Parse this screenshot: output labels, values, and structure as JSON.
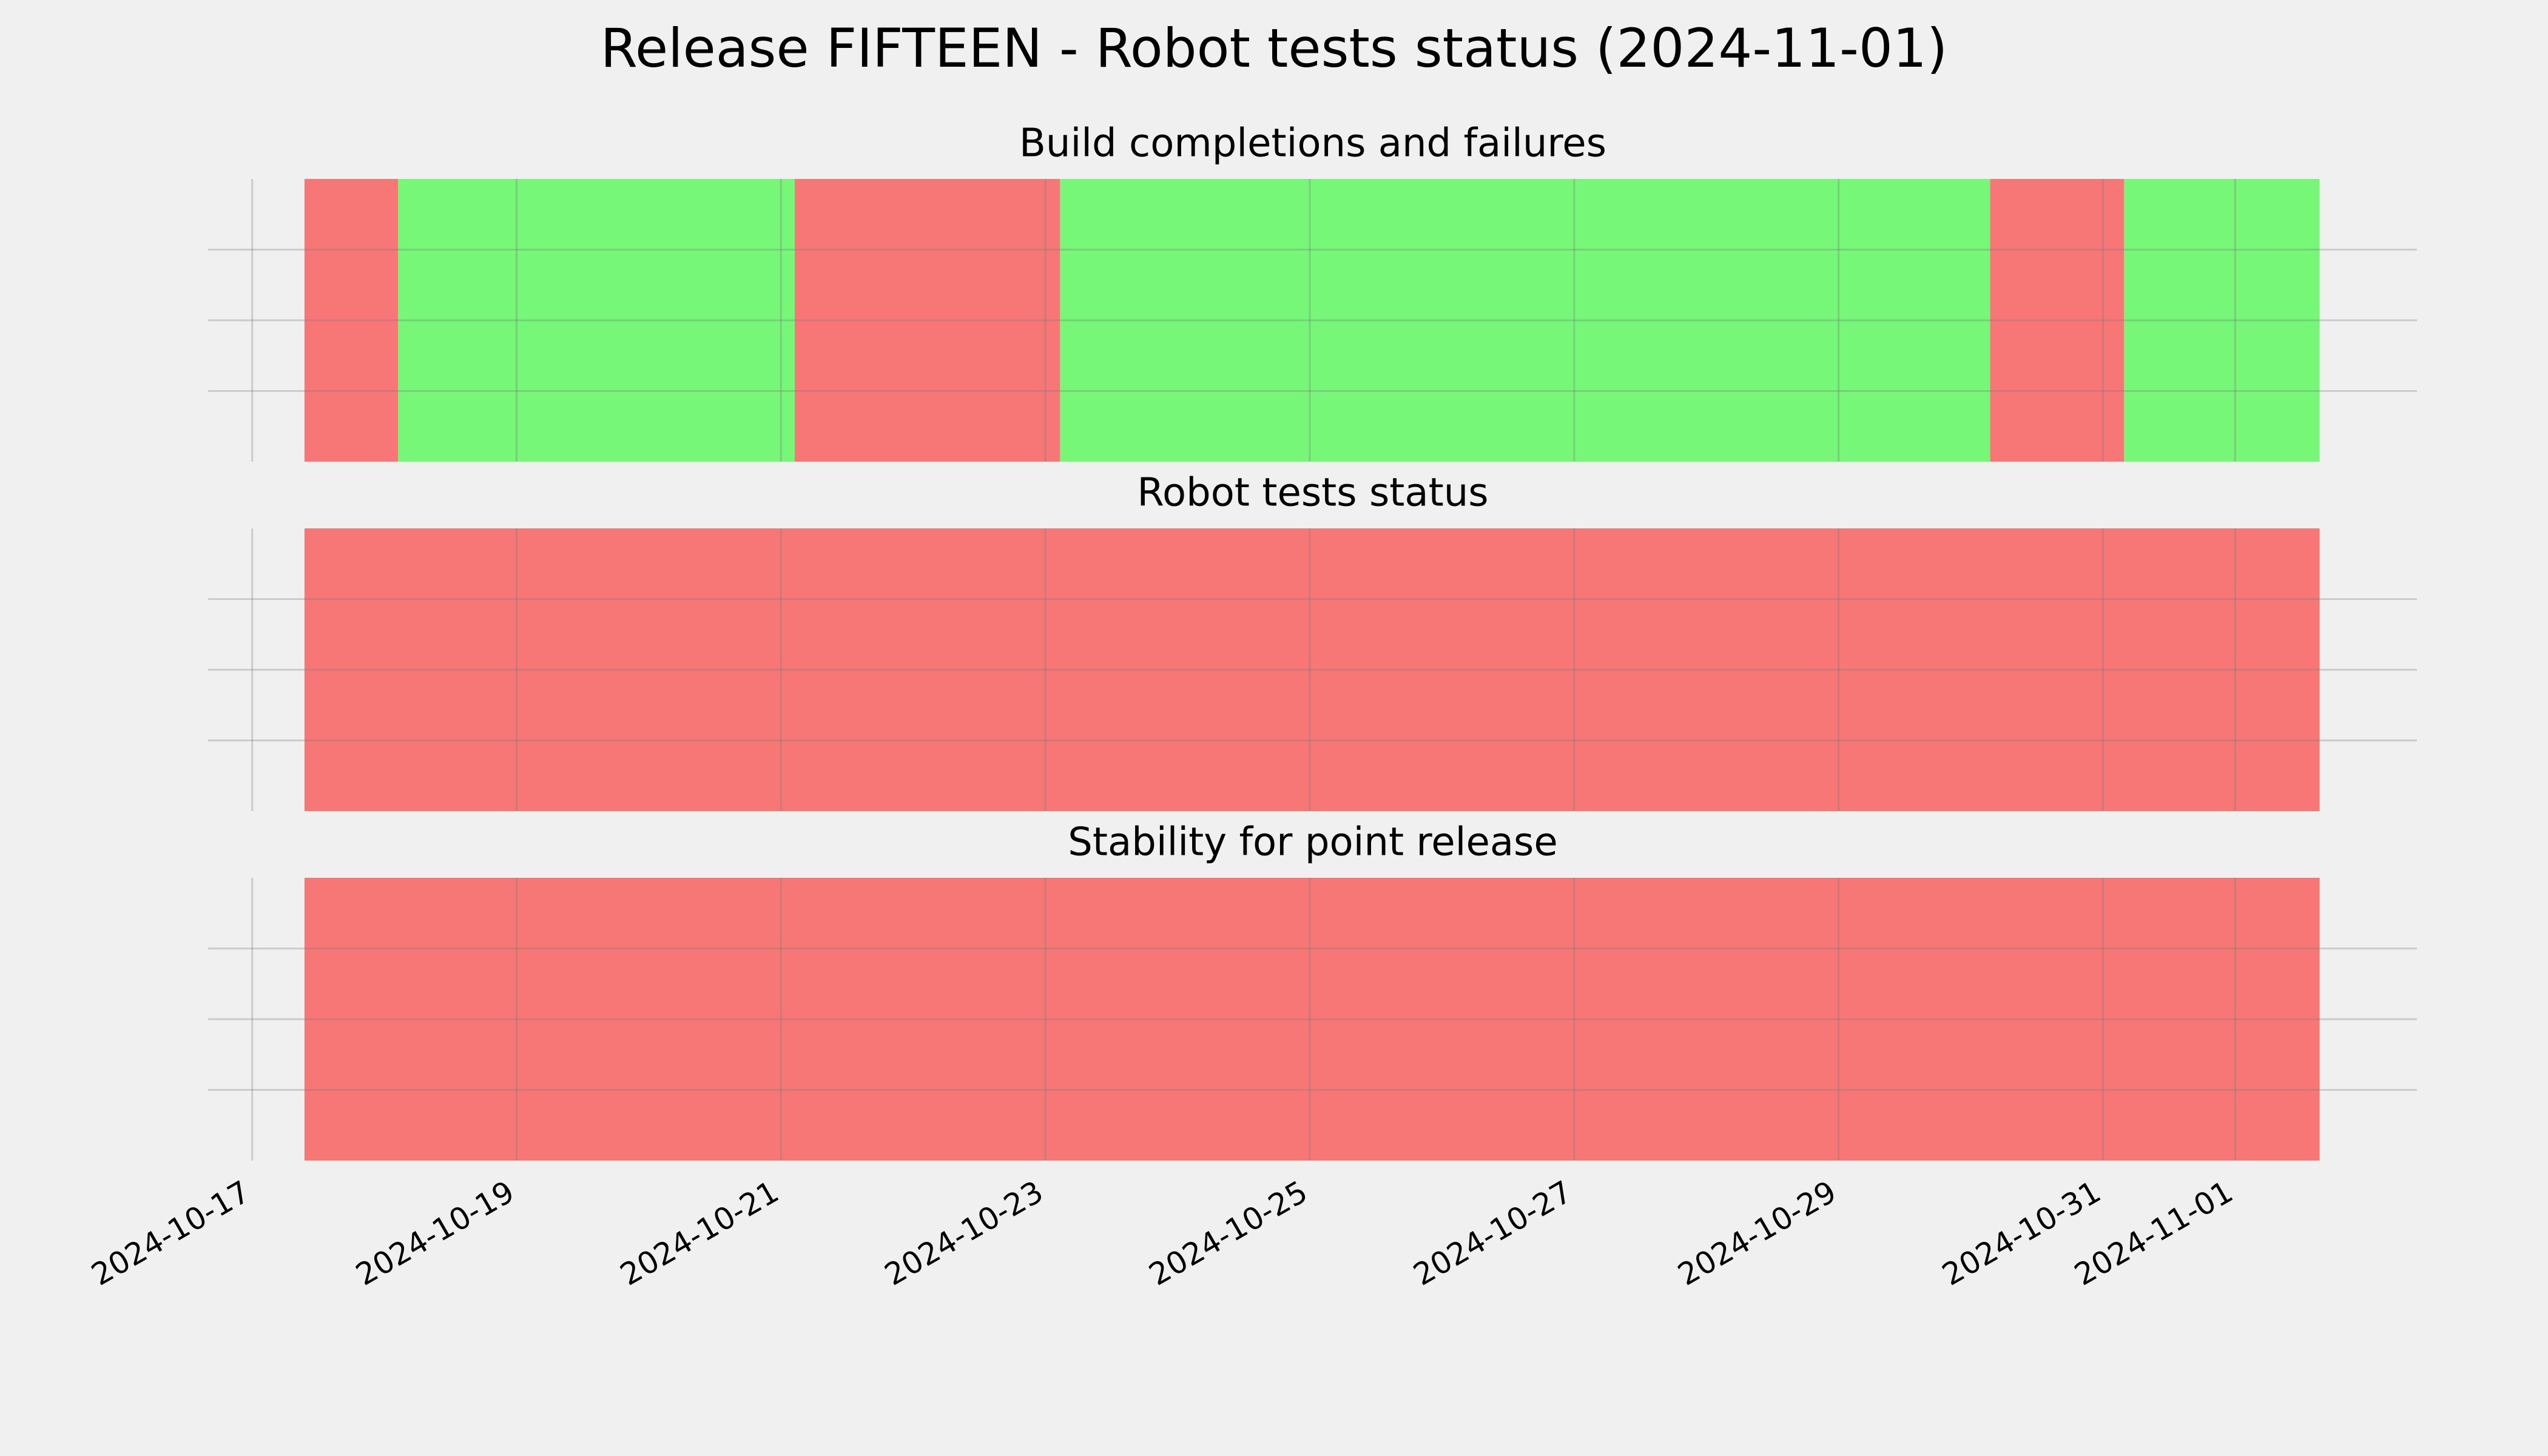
{
  "title": "Release FIFTEEN - Robot tests status (2024-11-01)",
  "chart_data": [
    {
      "type": "timeline",
      "title": "Build completions and failures",
      "xlim": [
        "2024-10-16T16:00",
        "2024-11-02T09:00"
      ],
      "xticks": [
        "2024-10-17",
        "2024-10-19",
        "2024-10-21",
        "2024-10-23",
        "2024-10-25",
        "2024-10-27",
        "2024-10-29",
        "2024-10-31",
        "2024-11-01"
      ],
      "grid": true,
      "starts": [
        "2024-10-17T09:30",
        "2024-10-18T02:30",
        "2024-10-21T02:30",
        "2024-10-23T02:40",
        "2024-10-30T03:30",
        "2024-10-31T03:50"
      ],
      "ends": [
        "2024-10-18T02:30",
        "2024-10-21T02:30",
        "2024-10-23T02:40",
        "2024-10-30T03:30",
        "2024-10-31T03:50",
        "2024-11-01T15:20"
      ],
      "colors": [
        "#f77777",
        "#77f777",
        "#f77777",
        "#77f777",
        "#f77777",
        "#77f777"
      ]
    },
    {
      "type": "timeline",
      "title": "Robot tests status",
      "xlim": [
        "2024-10-16T16:00",
        "2024-11-02T09:00"
      ],
      "xticks": [
        "2024-10-17",
        "2024-10-19",
        "2024-10-21",
        "2024-10-23",
        "2024-10-25",
        "2024-10-27",
        "2024-10-29",
        "2024-10-31",
        "2024-11-01"
      ],
      "grid": true,
      "starts": [
        "2024-10-17T09:30"
      ],
      "ends": [
        "2024-11-01T15:20"
      ],
      "colors": [
        "#f77777"
      ]
    },
    {
      "type": "timeline",
      "title": "Stability for point release",
      "xlim": [
        "2024-10-16T16:00",
        "2024-11-02T09:00"
      ],
      "xticks": [
        "2024-10-17",
        "2024-10-19",
        "2024-10-21",
        "2024-10-23",
        "2024-10-25",
        "2024-10-27",
        "2024-10-29",
        "2024-10-31",
        "2024-11-01"
      ],
      "grid": true,
      "starts": [
        "2024-10-17T09:30"
      ],
      "ends": [
        "2024-11-01T15:20"
      ],
      "colors": [
        "#f77777"
      ]
    }
  ]
}
